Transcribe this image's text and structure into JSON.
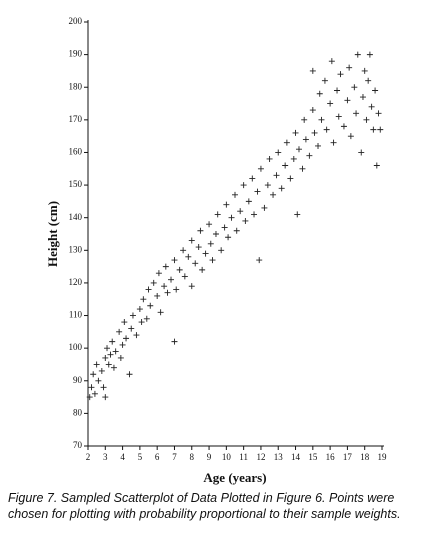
{
  "chart_data": {
    "type": "scatter",
    "x_label": "Age (years)",
    "y_label": "Height (cm)",
    "caption": "Figure 7.  Sampled Scatterplot of Data Plotted in Figure 6. Points were chosen for plotting with probability proportional to their sample weights.",
    "marker": "+",
    "color": "#222222",
    "xlim": [
      2,
      19
    ],
    "xticks": [
      2,
      3,
      4,
      5,
      6,
      7,
      8,
      9,
      10,
      11,
      12,
      13,
      14,
      15,
      16,
      17,
      18,
      19
    ],
    "ylim": [
      70,
      200
    ],
    "yticks": [
      70,
      80,
      90,
      100,
      110,
      120,
      130,
      140,
      150,
      160,
      170,
      180,
      190,
      200
    ],
    "x": [
      2.1,
      2.2,
      2.3,
      2.4,
      2.5,
      2.6,
      2.8,
      2.9,
      3.0,
      3.0,
      3.1,
      3.2,
      3.3,
      3.4,
      3.5,
      3.6,
      3.8,
      3.9,
      4.0,
      4.1,
      4.2,
      4.4,
      4.5,
      4.6,
      4.8,
      5.0,
      5.1,
      5.2,
      5.4,
      5.5,
      5.6,
      5.8,
      6.0,
      6.1,
      6.2,
      6.4,
      6.5,
      6.6,
      6.8,
      7.0,
      7.0,
      7.1,
      7.3,
      7.5,
      7.6,
      7.8,
      8.0,
      8.0,
      8.2,
      8.4,
      8.5,
      8.6,
      8.8,
      9.0,
      9.1,
      9.2,
      9.4,
      9.5,
      9.7,
      9.9,
      10.0,
      10.1,
      10.3,
      10.5,
      10.6,
      10.8,
      11.0,
      11.1,
      11.3,
      11.5,
      11.6,
      11.8,
      11.9,
      12.0,
      12.2,
      12.4,
      12.5,
      12.7,
      12.9,
      13.0,
      13.2,
      13.4,
      13.5,
      13.7,
      13.9,
      14.0,
      14.1,
      14.2,
      14.4,
      14.5,
      14.6,
      14.8,
      15.0,
      15.0,
      15.1,
      15.3,
      15.4,
      15.5,
      15.7,
      15.8,
      16.0,
      16.1,
      16.2,
      16.4,
      16.5,
      16.6,
      16.8,
      17.0,
      17.1,
      17.2,
      17.4,
      17.5,
      17.6,
      17.8,
      17.9,
      18.0,
      18.1,
      18.2,
      18.3,
      18.4,
      18.5,
      18.6,
      18.7,
      18.8,
      18.9
    ],
    "values": [
      85,
      88,
      92,
      86,
      95,
      90,
      93,
      88,
      85,
      97,
      100,
      95,
      98,
      102,
      94,
      99,
      105,
      97,
      101,
      108,
      103,
      92,
      106,
      110,
      104,
      112,
      108,
      115,
      109,
      118,
      113,
      120,
      116,
      123,
      111,
      119,
      125,
      117,
      121,
      102,
      127,
      118,
      124,
      130,
      122,
      128,
      119,
      133,
      126,
      131,
      136,
      124,
      129,
      138,
      132,
      127,
      135,
      141,
      130,
      137,
      144,
      134,
      140,
      147,
      136,
      142,
      150,
      139,
      145,
      152,
      141,
      148,
      127,
      155,
      143,
      150,
      158,
      147,
      153,
      160,
      149,
      156,
      163,
      152,
      158,
      166,
      141,
      161,
      155,
      170,
      164,
      159,
      173,
      185,
      166,
      162,
      178,
      170,
      182,
      167,
      175,
      188,
      163,
      179,
      171,
      184,
      168,
      176,
      186,
      165,
      180,
      172,
      190,
      160,
      177,
      185,
      170,
      182,
      190,
      174,
      167,
      179,
      156,
      172,
      167
    ]
  }
}
